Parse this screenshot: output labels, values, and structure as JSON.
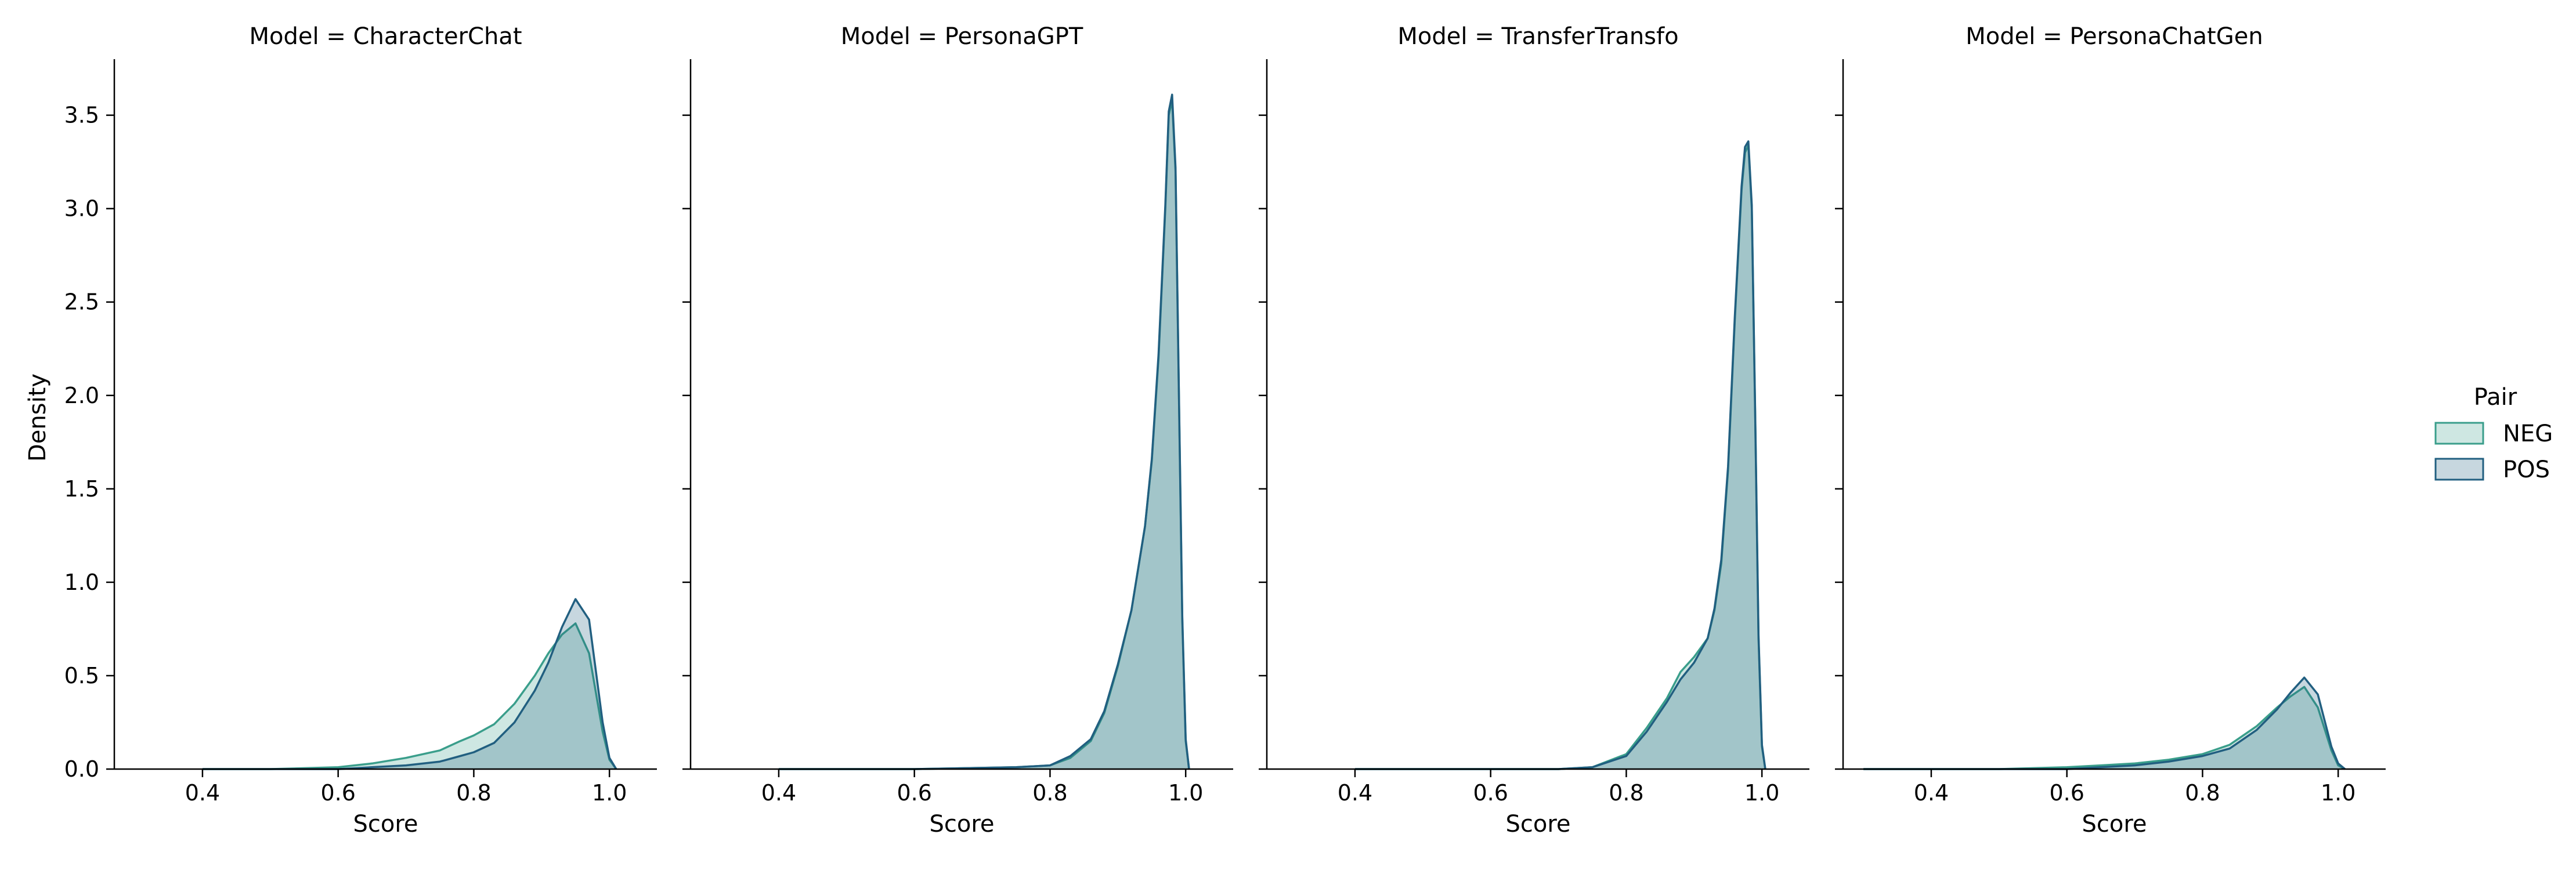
{
  "chart_data": {
    "type": "area",
    "subtype": "kde-facet-grid",
    "facet_variable": "Model",
    "facet_titles": [
      "Model = CharacterChat",
      "Model = PersonaGPT",
      "Model = TransferTransfo",
      "Model = PersonaChatGen"
    ],
    "xlabel": "Score",
    "ylabel": "Density",
    "xlim": [
      0.27,
      1.07
    ],
    "ylim": [
      0,
      3.8
    ],
    "x_ticks": [
      0.4,
      0.6,
      0.8,
      1.0
    ],
    "x_tick_labels": [
      "0.4",
      "0.6",
      "0.8",
      "1.0"
    ],
    "y_ticks": [
      0,
      0.5,
      1.0,
      1.5,
      2.0,
      2.5,
      3.0,
      3.5
    ],
    "y_tick_labels": [
      "0.0",
      "0.5",
      "1.0",
      "1.5",
      "2.0",
      "2.5",
      "3.0",
      "3.5"
    ],
    "grid": false,
    "legend": {
      "title": "Pair",
      "placement": "right",
      "entries": [
        {
          "label": "NEG",
          "color": "#3a9e8b"
        },
        {
          "label": "POS",
          "color": "#215f80"
        }
      ]
    },
    "series_colors": {
      "NEG": "#3a9e8b",
      "POS": "#215f80"
    },
    "panels": [
      {
        "model": "CharacterChat",
        "series": [
          {
            "name": "NEG",
            "x": [
              0.4,
              0.5,
              0.6,
              0.65,
              0.7,
              0.75,
              0.78,
              0.8,
              0.83,
              0.86,
              0.89,
              0.91,
              0.93,
              0.95,
              0.97,
              0.99,
              1.0,
              1.01
            ],
            "y": [
              0.0,
              0.0,
              0.01,
              0.03,
              0.06,
              0.1,
              0.15,
              0.18,
              0.24,
              0.35,
              0.5,
              0.62,
              0.72,
              0.78,
              0.62,
              0.2,
              0.05,
              0.0
            ]
          },
          {
            "name": "POS",
            "x": [
              0.4,
              0.5,
              0.6,
              0.65,
              0.7,
              0.75,
              0.78,
              0.8,
              0.83,
              0.86,
              0.89,
              0.91,
              0.93,
              0.95,
              0.97,
              0.99,
              1.0,
              1.01
            ],
            "y": [
              0.0,
              0.0,
              0.0,
              0.01,
              0.02,
              0.04,
              0.07,
              0.09,
              0.14,
              0.25,
              0.42,
              0.57,
              0.76,
              0.91,
              0.8,
              0.25,
              0.06,
              0.0
            ]
          }
        ]
      },
      {
        "model": "PersonaGPT",
        "series": [
          {
            "name": "NEG",
            "x": [
              0.4,
              0.6,
              0.75,
              0.8,
              0.83,
              0.86,
              0.88,
              0.9,
              0.92,
              0.94,
              0.95,
              0.96,
              0.97,
              0.975,
              0.98,
              0.985,
              0.99,
              0.995,
              1.0,
              1.005
            ],
            "y": [
              0.0,
              0.0,
              0.01,
              0.02,
              0.06,
              0.15,
              0.3,
              0.55,
              0.85,
              1.3,
              1.65,
              2.2,
              3.0,
              3.5,
              3.58,
              3.2,
              2.0,
              0.8,
              0.15,
              0.0
            ]
          },
          {
            "name": "POS",
            "x": [
              0.4,
              0.6,
              0.75,
              0.8,
              0.83,
              0.86,
              0.88,
              0.9,
              0.92,
              0.94,
              0.95,
              0.96,
              0.97,
              0.975,
              0.98,
              0.985,
              0.99,
              0.995,
              1.0,
              1.005
            ],
            "y": [
              0.0,
              0.0,
              0.01,
              0.02,
              0.07,
              0.16,
              0.31,
              0.56,
              0.85,
              1.3,
              1.66,
              2.22,
              3.02,
              3.52,
              3.61,
              3.22,
              2.02,
              0.82,
              0.16,
              0.0
            ]
          }
        ]
      },
      {
        "model": "TransferTransfo",
        "series": [
          {
            "name": "NEG",
            "x": [
              0.4,
              0.6,
              0.7,
              0.75,
              0.8,
              0.83,
              0.86,
              0.88,
              0.9,
              0.92,
              0.93,
              0.94,
              0.95,
              0.96,
              0.97,
              0.975,
              0.98,
              0.985,
              0.99,
              0.995,
              1.0,
              1.005
            ],
            "y": [
              0.0,
              0.0,
              0.0,
              0.01,
              0.08,
              0.22,
              0.38,
              0.52,
              0.6,
              0.7,
              0.85,
              1.1,
              1.6,
              2.4,
              3.1,
              3.3,
              3.34,
              3.0,
              1.9,
              0.7,
              0.12,
              0.0
            ]
          },
          {
            "name": "POS",
            "x": [
              0.4,
              0.6,
              0.7,
              0.75,
              0.8,
              0.83,
              0.86,
              0.88,
              0.9,
              0.92,
              0.93,
              0.94,
              0.95,
              0.96,
              0.97,
              0.975,
              0.98,
              0.985,
              0.99,
              0.995,
              1.0,
              1.005
            ],
            "y": [
              0.0,
              0.0,
              0.0,
              0.01,
              0.07,
              0.2,
              0.36,
              0.48,
              0.57,
              0.7,
              0.86,
              1.12,
              1.62,
              2.42,
              3.12,
              3.33,
              3.36,
              3.02,
              1.92,
              0.72,
              0.13,
              0.0
            ]
          }
        ]
      },
      {
        "model": "PersonaChatGen",
        "series": [
          {
            "name": "NEG",
            "x": [
              0.3,
              0.4,
              0.5,
              0.6,
              0.65,
              0.7,
              0.75,
              0.8,
              0.84,
              0.88,
              0.91,
              0.93,
              0.95,
              0.97,
              0.99,
              1.0,
              1.01
            ],
            "y": [
              0.0,
              0.0,
              0.0,
              0.01,
              0.02,
              0.03,
              0.05,
              0.08,
              0.13,
              0.23,
              0.33,
              0.39,
              0.44,
              0.33,
              0.1,
              0.02,
              0.0
            ]
          },
          {
            "name": "POS",
            "x": [
              0.3,
              0.4,
              0.5,
              0.6,
              0.65,
              0.7,
              0.75,
              0.8,
              0.84,
              0.88,
              0.91,
              0.93,
              0.95,
              0.97,
              0.99,
              1.0,
              1.01
            ],
            "y": [
              0.0,
              0.0,
              0.0,
              0.0,
              0.01,
              0.02,
              0.04,
              0.07,
              0.11,
              0.21,
              0.32,
              0.41,
              0.49,
              0.4,
              0.12,
              0.03,
              0.0
            ]
          }
        ]
      }
    ]
  }
}
